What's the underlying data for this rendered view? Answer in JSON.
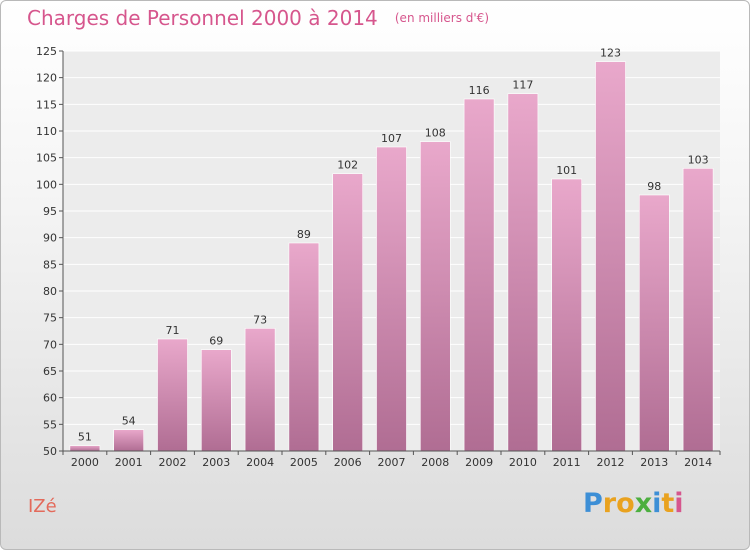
{
  "title": "Charges de Personnel 2000 à 2014",
  "unit": "(en milliers d'€)",
  "commune": "IZé",
  "logo": {
    "letters": [
      {
        "ch": "P",
        "color": "#3d8fd6"
      },
      {
        "ch": "r",
        "color": "#e9a21f"
      },
      {
        "ch": "o",
        "color": "#e9a21f"
      },
      {
        "ch": "x",
        "color": "#4caf3f"
      },
      {
        "ch": "i",
        "color": "#3d8fd6"
      },
      {
        "ch": "t",
        "color": "#e9a21f"
      },
      {
        "ch": "i",
        "color": "#d6568d"
      }
    ]
  },
  "colors": {
    "title": "#d6568d",
    "commune": "#e36a5b",
    "bar_top": "#e9a8cb",
    "bar_bottom": "#b06d93",
    "grid": "#ffffff"
  },
  "chart_data": {
    "type": "bar",
    "categories": [
      "2000",
      "2001",
      "2002",
      "2003",
      "2004",
      "2005",
      "2006",
      "2007",
      "2008",
      "2009",
      "2010",
      "2011",
      "2012",
      "2013",
      "2014"
    ],
    "values": [
      51,
      54,
      71,
      69,
      73,
      89,
      102,
      107,
      108,
      116,
      117,
      101,
      123,
      98,
      103
    ],
    "ylim": [
      50,
      125
    ],
    "yticks": [
      50,
      55,
      60,
      65,
      70,
      75,
      80,
      85,
      90,
      95,
      100,
      105,
      110,
      115,
      120,
      125
    ],
    "grid": true,
    "data_labels": true
  }
}
